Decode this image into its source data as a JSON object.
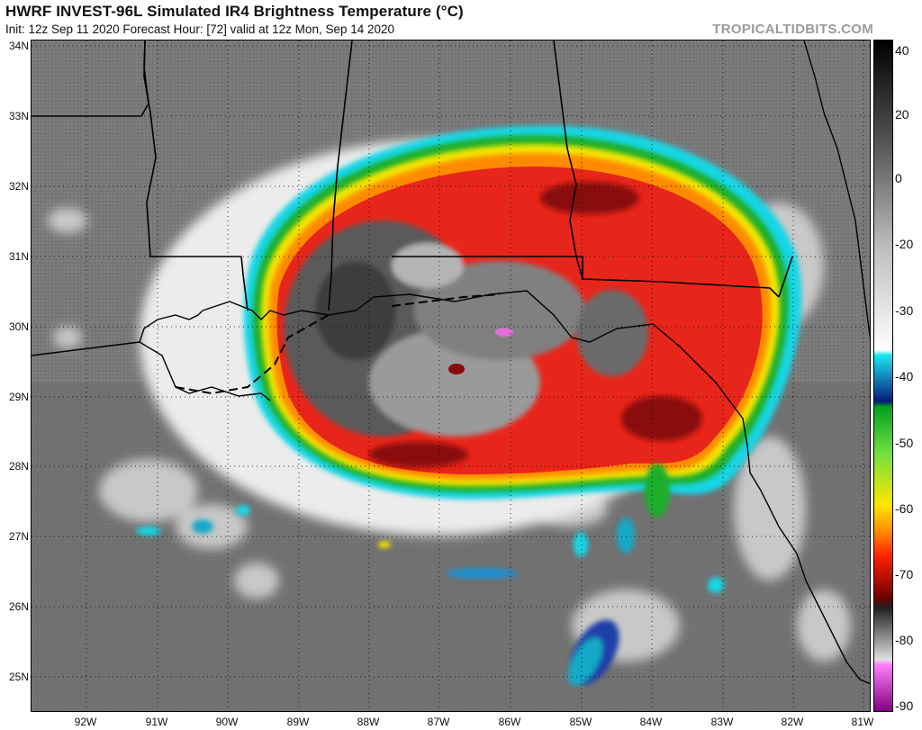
{
  "header": {
    "title": "HWRF INVEST-96L Simulated IR4 Brightness Temperature (°C)",
    "subtitle": "Init: 12z Sep 11 2020   Forecast Hour: [72]   valid at 12z Mon, Sep 14 2020",
    "site": "TROPICALTIDBITS.COM"
  },
  "map": {
    "latitude_labels": [
      "34N",
      "33N",
      "32N",
      "31N",
      "30N",
      "29N",
      "28N",
      "27N",
      "26N",
      "25N"
    ],
    "longitude_labels": [
      "92W",
      "91W",
      "90W",
      "89W",
      "88W",
      "87W",
      "86W",
      "85W",
      "84W",
      "83W",
      "82W",
      "81W"
    ],
    "colors": {
      "land_gray": "#7a7a7a",
      "sea_gray": "#6e6e6e",
      "warm_cloud": "#c8c8c8",
      "red": "#e8251a",
      "dark_red": "#8a0c0c",
      "orange": "#ff8a00",
      "yellow": "#f2e600",
      "green": "#1fae2a",
      "cyan": "#19d6e6",
      "blue": "#1f3fa8",
      "magenta": "#e070d8"
    }
  },
  "colorbar": {
    "ticks": [
      "40",
      "20",
      "0",
      "-20",
      "-30",
      "-40",
      "-50",
      "-60",
      "-70",
      "-80",
      "-90"
    ],
    "stops": [
      {
        "value": 40,
        "color": "#000000"
      },
      {
        "value": 20,
        "color": "#555555"
      },
      {
        "value": 0,
        "color": "#bdbdbd"
      },
      {
        "value": -20,
        "color": "#ffffff"
      },
      {
        "value": -21,
        "color": "#19e6f0"
      },
      {
        "value": -30,
        "color": "#0a1a7a"
      },
      {
        "value": -31,
        "color": "#00a020"
      },
      {
        "value": -40,
        "color": "#70e040"
      },
      {
        "value": -50,
        "color": "#ffe600"
      },
      {
        "value": -55,
        "color": "#ff9000"
      },
      {
        "value": -60,
        "color": "#ff2000"
      },
      {
        "value": -68,
        "color": "#700000"
      },
      {
        "value": -70,
        "color": "#202020"
      },
      {
        "value": -80,
        "color": "#e0e0e0"
      },
      {
        "value": -81,
        "color": "#ff80ff"
      },
      {
        "value": -90,
        "color": "#800080"
      }
    ]
  }
}
